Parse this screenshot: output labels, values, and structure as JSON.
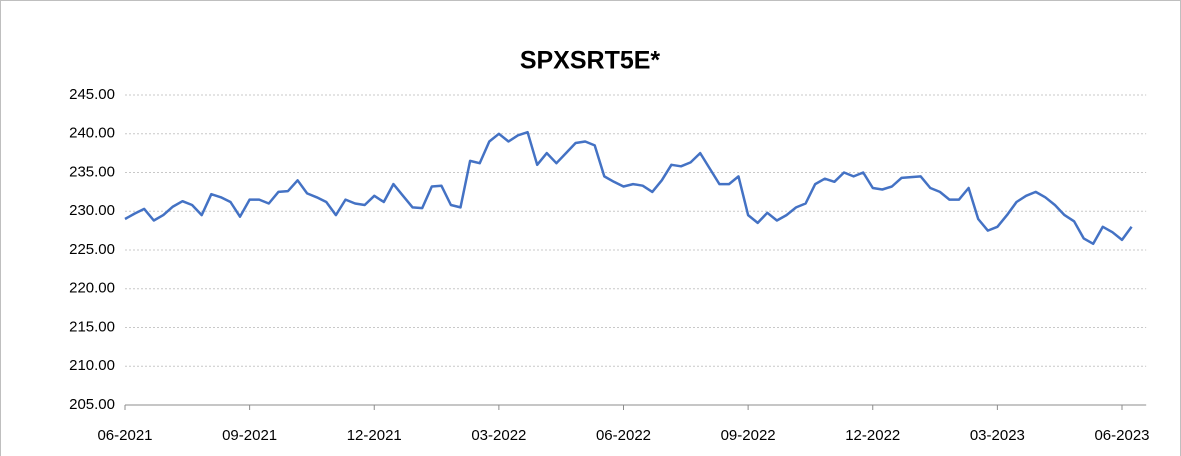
{
  "chart_data": {
    "type": "line",
    "title": "SPXSRT5E*",
    "series": [
      {
        "name": "SPXSRT5E*",
        "color": "#4472c4",
        "values": [
          229,
          229.7,
          230.3,
          228.8,
          229.5,
          230.6,
          231.3,
          230.8,
          229.5,
          232.2,
          231.8,
          231.2,
          229.3,
          231.5,
          231.5,
          231,
          232.5,
          232.6,
          234,
          232.3,
          231.8,
          231.2,
          229.5,
          231.5,
          231,
          230.8,
          232,
          231.2,
          233.5,
          232,
          230.5,
          230.4,
          233.2,
          233.3,
          230.8,
          230.5,
          236.5,
          236.2,
          239,
          240,
          239,
          239.8,
          240.2,
          236,
          237.5,
          236.2,
          237.5,
          238.8,
          239,
          238.5,
          234.5,
          233.8,
          233.2,
          233.5,
          233.3,
          232.5,
          234,
          236,
          235.8,
          236.3,
          237.5,
          235.5,
          233.5,
          233.5,
          234.5,
          229.5,
          228.5,
          229.8,
          228.8,
          229.5,
          230.5,
          231,
          233.5,
          234.2,
          233.8,
          235,
          234.5,
          235,
          233,
          232.8,
          233.2,
          234.3,
          234.4,
          234.5,
          233,
          232.5,
          231.5,
          231.5,
          233,
          229,
          227.5,
          228,
          229.5,
          231.2,
          232,
          232.5,
          231.8,
          230.8,
          229.5,
          228.7,
          226.5,
          225.8,
          228,
          227.3,
          226.3,
          228
        ]
      }
    ],
    "xlim": [
      0,
      106
    ],
    "xticks": [
      {
        "value": 0,
        "label": "06-2021"
      },
      {
        "value": 13,
        "label": "09-2021"
      },
      {
        "value": 26,
        "label": "12-2021"
      },
      {
        "value": 39,
        "label": "03-2022"
      },
      {
        "value": 52,
        "label": "06-2022"
      },
      {
        "value": 65,
        "label": "09-2022"
      },
      {
        "value": 78,
        "label": "12-2022"
      },
      {
        "value": 91,
        "label": "03-2023"
      },
      {
        "value": 104,
        "label": "06-2023"
      }
    ],
    "ylim": [
      205,
      245
    ],
    "yticks": [
      {
        "value": 205,
        "label": "205.00"
      },
      {
        "value": 210,
        "label": "210.00"
      },
      {
        "value": 215,
        "label": "215.00"
      },
      {
        "value": 220,
        "label": "220.00"
      },
      {
        "value": 225,
        "label": "225.00"
      },
      {
        "value": 230,
        "label": "230.00"
      },
      {
        "value": 235,
        "label": "235.00"
      },
      {
        "value": 240,
        "label": "240.00"
      },
      {
        "value": 245,
        "label": "245.00"
      }
    ],
    "grid": true
  }
}
